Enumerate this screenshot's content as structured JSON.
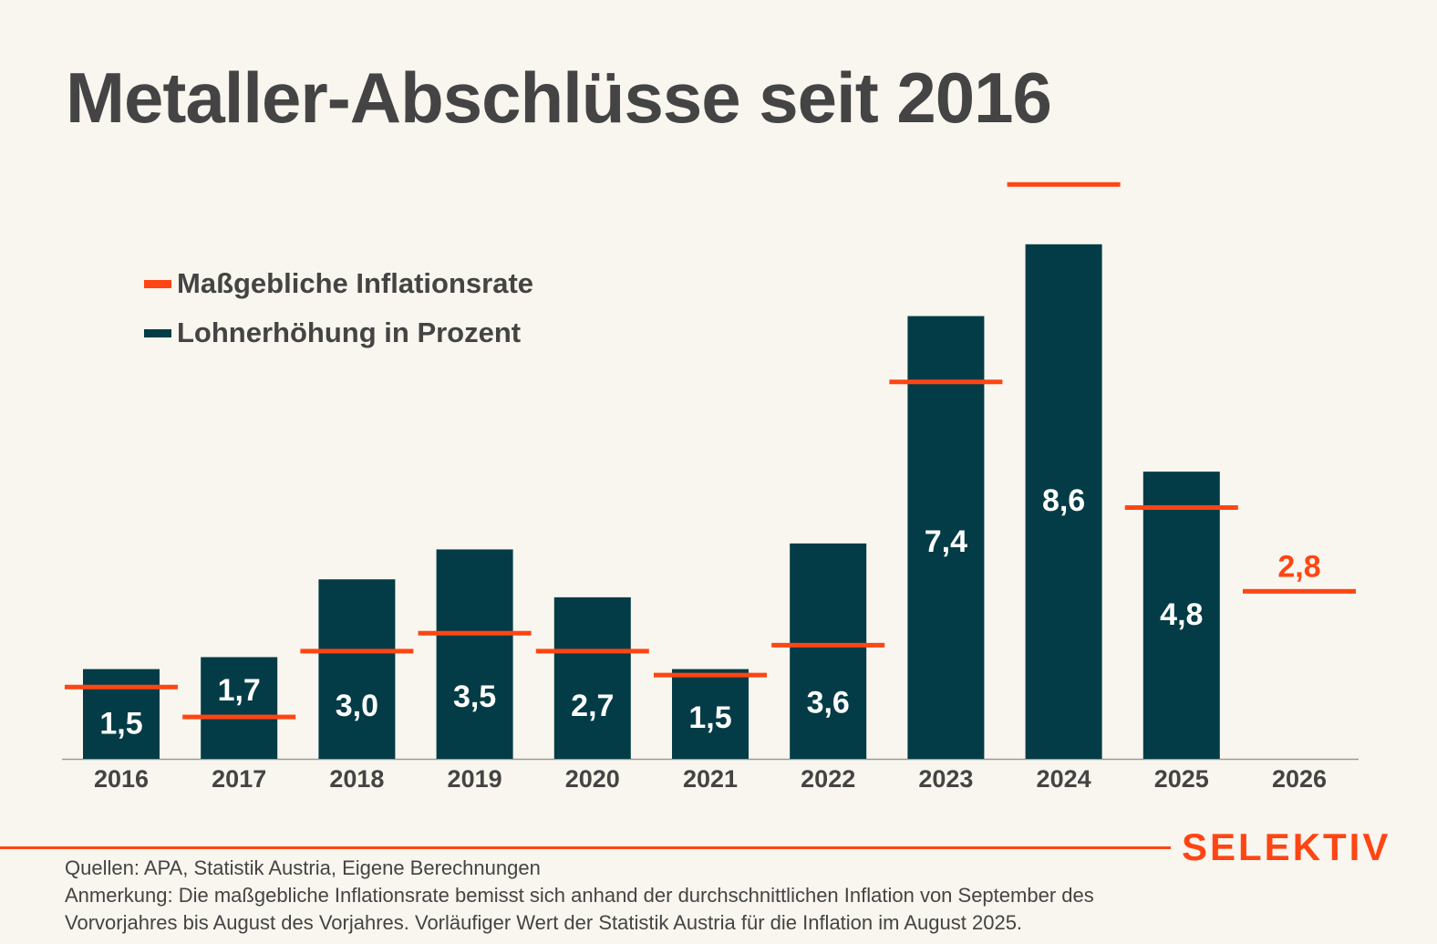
{
  "title": "Metaller-Abschlüsse seit 2016",
  "legend": [
    {
      "label": "Maßgebliche Inflationsrate",
      "color": "#ff4513"
    },
    {
      "label": "Lohnerhöhung in Prozent",
      "color": "#033c46"
    }
  ],
  "chart_data": {
    "type": "bar",
    "title": "Metaller-Abschlüsse seit 2016",
    "xlabel": "",
    "ylabel": "",
    "ylim": [
      0,
      10
    ],
    "grid": false,
    "legend_position": "top-left",
    "categories": [
      "2016",
      "2017",
      "2018",
      "2019",
      "2020",
      "2021",
      "2022",
      "2023",
      "2024",
      "2025",
      "2026"
    ],
    "series": [
      {
        "name": "Lohnerhöhung in Prozent",
        "type": "bar",
        "color": "#033c46",
        "values": [
          1.5,
          1.7,
          3.0,
          3.5,
          2.7,
          1.5,
          3.6,
          7.4,
          8.6,
          4.8,
          null
        ],
        "labels": [
          "1,5",
          "1,7",
          "3,0",
          "3,5",
          "2,7",
          "1,5",
          "3,6",
          "7,4",
          "8,6",
          "4,8",
          ""
        ]
      },
      {
        "name": "Maßgebliche Inflationsrate",
        "type": "marker-line",
        "color": "#ff4513",
        "values": [
          1.2,
          0.7,
          1.8,
          2.1,
          1.8,
          1.4,
          1.9,
          6.3,
          9.6,
          4.2,
          2.8
        ],
        "labels": [
          "",
          "",
          "",
          "",
          "",
          "",
          "",
          "",
          "",
          "",
          "2,8"
        ]
      }
    ]
  },
  "footer": {
    "brand": "SELEKTIV",
    "sources": "Quellen: APA, Statistik Austria, Eigene Berechnungen",
    "note_line1": "Anmerkung: Die maßgebliche Inflationsrate bemisst sich anhand der durchschnittlichen Inflation von September des",
    "note_line2": "Vorvorjahres bis August des Vorjahres. Vorläufiger Wert der Statistik Austria für die Inflation im August 2025."
  }
}
